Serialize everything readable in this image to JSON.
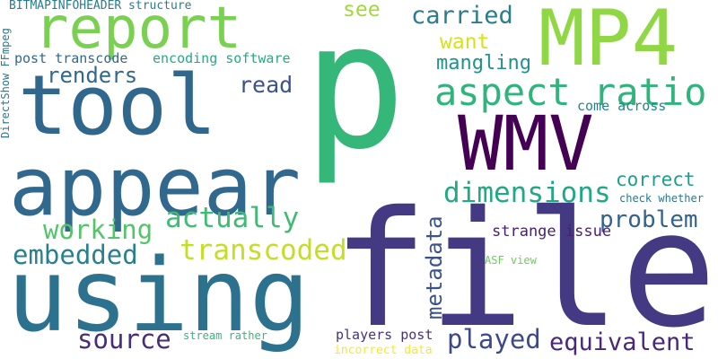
{
  "words": [
    {
      "text": "p",
      "color": "#35b779"
    },
    {
      "text": "file",
      "color": "#443983"
    },
    {
      "text": "using",
      "color": "#2c728e"
    },
    {
      "text": "appear",
      "color": "#31688e"
    },
    {
      "text": "tool",
      "color": "#30678d"
    },
    {
      "text": "WMV",
      "color": "#440154"
    },
    {
      "text": "MP4",
      "color": "#8fd744"
    },
    {
      "text": "report",
      "color": "#7ad151"
    },
    {
      "text": "aspect ratio",
      "color": "#2fb47c"
    },
    {
      "text": "dimensions",
      "color": "#22a884"
    },
    {
      "text": "actually",
      "color": "#3fbc73"
    },
    {
      "text": "transcoded",
      "color": "#c2df23"
    },
    {
      "text": "working",
      "color": "#52c569"
    },
    {
      "text": "embedded",
      "color": "#26818e"
    },
    {
      "text": "source",
      "color": "#472d7b"
    },
    {
      "text": "played",
      "color": "#3e4989"
    },
    {
      "text": "equivalent",
      "color": "#482878"
    },
    {
      "text": "problem",
      "color": "#33638d"
    },
    {
      "text": "correct",
      "color": "#1f9e89"
    },
    {
      "text": "mangling",
      "color": "#20928c"
    },
    {
      "text": "want",
      "color": "#d8e219"
    },
    {
      "text": "renders",
      "color": "#31688e"
    },
    {
      "text": "read",
      "color": "#3b528b"
    },
    {
      "text": "carried",
      "color": "#287d8e"
    },
    {
      "text": "see",
      "color": "#a0da39"
    },
    {
      "text": "strange issue",
      "color": "#481f70"
    },
    {
      "text": "come across",
      "color": "#25838e"
    },
    {
      "text": "check whether",
      "color": "#2a788e"
    },
    {
      "text": "encoding software",
      "color": "#25ab82"
    },
    {
      "text": "post transcode",
      "color": "#31688e"
    },
    {
      "text": "BITMAPINFOHEADER structure",
      "color": "#287c8e"
    },
    {
      "text": "players post",
      "color": "#46337e"
    },
    {
      "text": "incorrect data",
      "color": "#fde725"
    },
    {
      "text": "stream rather",
      "color": "#35b779"
    },
    {
      "text": "ASF view",
      "color": "#6ccd5a"
    },
    {
      "text": "metadata",
      "color": "#3b528b"
    },
    {
      "text": "DirectShow FFmpeg",
      "color": "#2a788e"
    }
  ]
}
